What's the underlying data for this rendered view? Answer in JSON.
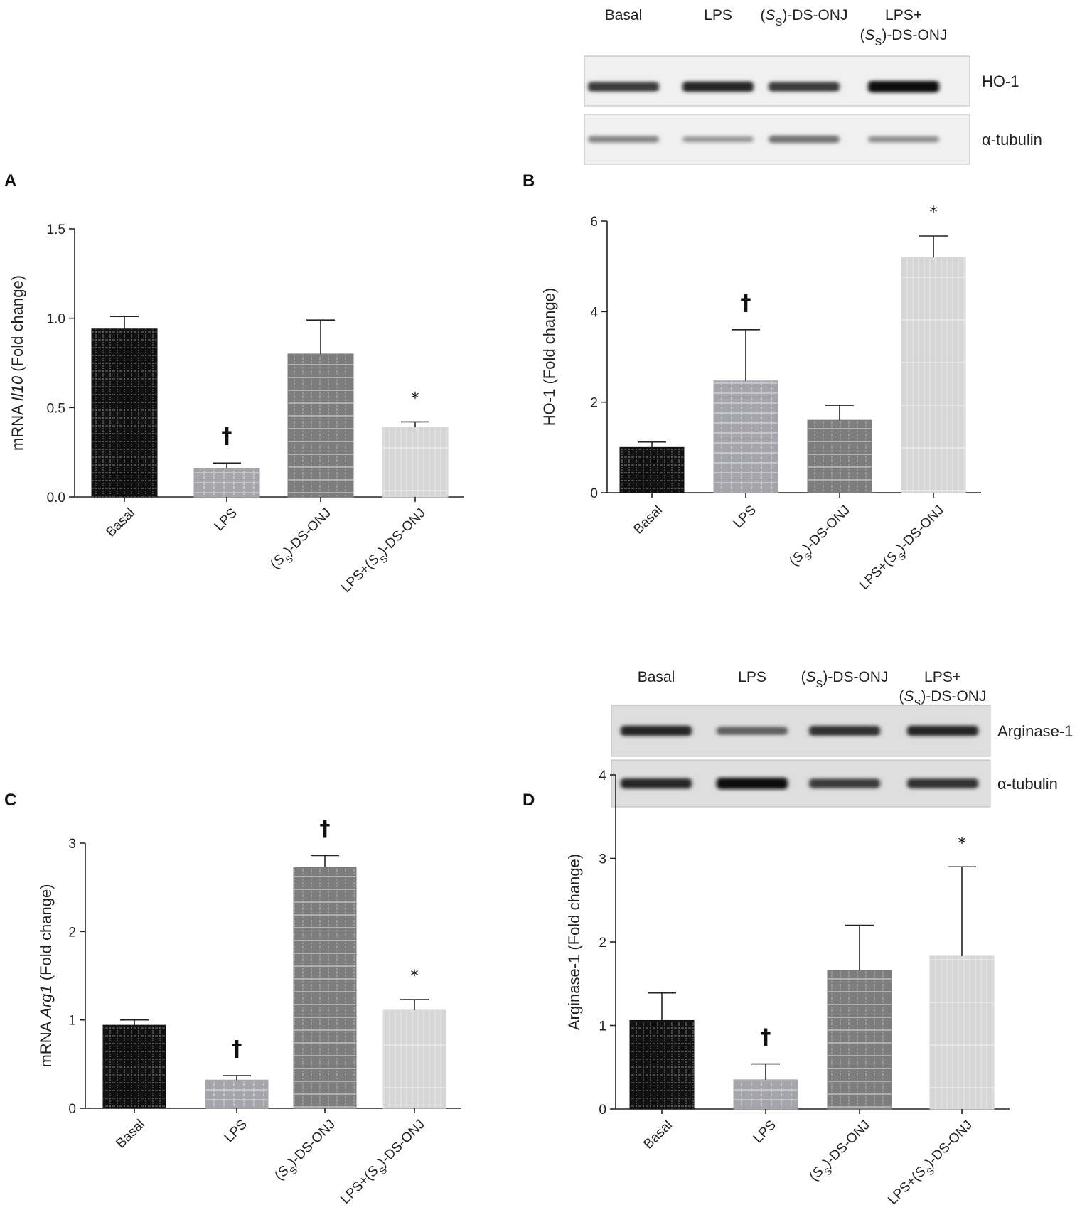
{
  "chart_data": [
    {
      "panel": "A",
      "type": "bar",
      "ylabel_pre": "mRNA ",
      "ylabel_gene": "Il10",
      "ylabel_post": " (Fold change)",
      "categories": [
        "Basal",
        "LPS",
        "(SS)-DS-ONJ",
        "LPS+(SS)-DS-ONJ"
      ],
      "values": [
        0.94,
        0.16,
        0.8,
        0.39
      ],
      "errors": [
        0.07,
        0.03,
        0.19,
        0.03
      ],
      "ylim": [
        0,
        1.5
      ],
      "yticks": [
        "0.0",
        "0.5",
        "1.0",
        "1.5"
      ],
      "significance": [
        "",
        "†",
        "",
        "*"
      ]
    },
    {
      "panel": "B",
      "type": "bar",
      "ylabel_pre": "HO-1 (Fold change)",
      "ylabel_gene": "",
      "ylabel_post": "",
      "categories": [
        "Basal",
        "LPS",
        "(SS)-DS-ONJ",
        "LPS+(SS)-DS-ONJ"
      ],
      "values": [
        1.0,
        2.47,
        1.6,
        5.2
      ],
      "errors": [
        0.12,
        1.13,
        0.33,
        0.47
      ],
      "ylim": [
        0,
        6
      ],
      "yticks": [
        "0",
        "2",
        "4",
        "6"
      ],
      "significance": [
        "",
        "†",
        "",
        "*"
      ]
    },
    {
      "panel": "C",
      "type": "bar",
      "ylabel_pre": "mRNA ",
      "ylabel_gene": "Arg1",
      "ylabel_post": " (Fold change)",
      "categories": [
        "Basal",
        "LPS",
        "(SS)-DS-ONJ",
        "LPS+(SS)-DS-ONJ"
      ],
      "values": [
        0.94,
        0.32,
        2.73,
        1.11
      ],
      "errors": [
        0.06,
        0.05,
        0.13,
        0.12
      ],
      "ylim": [
        0,
        3
      ],
      "yticks": [
        "0",
        "1",
        "2",
        "3"
      ],
      "significance": [
        "",
        "†",
        "†",
        "*"
      ]
    },
    {
      "panel": "D",
      "type": "bar",
      "ylabel_pre": "Arginase-1 (Fold change)",
      "ylabel_gene": "",
      "ylabel_post": "",
      "categories": [
        "Basal",
        "LPS",
        "(SS)-DS-ONJ",
        "LPS+(SS)-DS-ONJ"
      ],
      "values": [
        1.06,
        0.35,
        1.66,
        1.83
      ],
      "errors": [
        0.33,
        0.19,
        0.54,
        1.07
      ],
      "ylim": [
        0,
        4
      ],
      "yticks": [
        "0",
        "1",
        "2",
        "3",
        "4"
      ],
      "significance": [
        "",
        "†",
        "",
        "*"
      ]
    }
  ],
  "blots": [
    {
      "for_panel": "B",
      "lane_headers": [
        "Basal",
        "LPS",
        "(SS)-DS-ONJ",
        "LPS+",
        "(SS)-DS-ONJ"
      ],
      "row_labels": [
        "HO-1",
        "α-tubulin"
      ],
      "band_intensity": [
        [
          0.75,
          0.85,
          0.75,
          1.0
        ],
        [
          0.35,
          0.25,
          0.45,
          0.3
        ]
      ]
    },
    {
      "for_panel": "D",
      "lane_headers": [
        "Basal",
        "LPS",
        "(SS)-DS-ONJ",
        "LPS+",
        "(SS)-DS-ONJ"
      ],
      "row_labels": [
        "Arginase-1",
        "α-tubulin"
      ],
      "band_intensity": [
        [
          0.85,
          0.55,
          0.8,
          0.85
        ],
        [
          0.85,
          1.0,
          0.75,
          0.8
        ]
      ]
    }
  ],
  "colors": {
    "bar_fills": [
      "#111111",
      "#a4a4ab",
      "#7d7d7d",
      "#d6d6d6"
    ],
    "axis": "#222222"
  }
}
